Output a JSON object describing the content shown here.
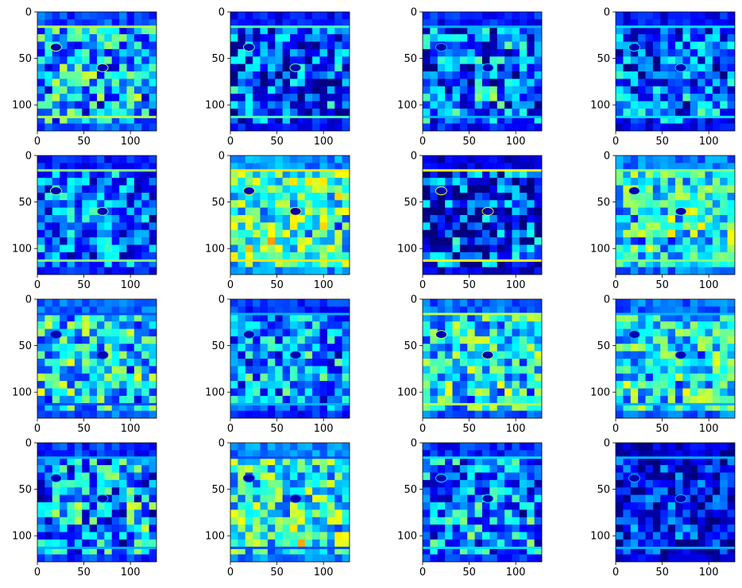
{
  "figure": {
    "layout": "4x4 grid of heatmap subplots",
    "colormap": "jet",
    "colormap_stops": [
      "#00007f",
      "#0000ff",
      "#007fff",
      "#00ffff",
      "#7fff7f",
      "#ffff00",
      "#ff7f00",
      "#ff0000",
      "#7f0000"
    ]
  },
  "chart_data": [
    {
      "type": "heatmap",
      "panel": 1,
      "image_size": 128,
      "xlim": [
        0,
        128
      ],
      "ylim": [
        128,
        0
      ],
      "x_ticks": [
        0,
        50,
        100
      ],
      "y_ticks": [
        0,
        50,
        100
      ],
      "x_tick_labels": [
        "0",
        "50",
        "100"
      ],
      "y_tick_labels": [
        "0",
        "50",
        "100"
      ],
      "mean_intensity": 0.32,
      "texture_contrast": 0.45,
      "band_top_row": 16,
      "band_bottom_row": 113,
      "band_intensity": 0.55,
      "blob_rows": [
        38,
        60
      ],
      "grid": false
    },
    {
      "type": "heatmap",
      "panel": 2,
      "image_size": 128,
      "xlim": [
        0,
        128
      ],
      "ylim": [
        128,
        0
      ],
      "x_ticks": [
        0,
        50,
        100
      ],
      "y_ticks": [
        0,
        50,
        100
      ],
      "x_tick_labels": [
        "0",
        "50",
        "100"
      ],
      "y_tick_labels": [
        "0",
        "50",
        "100"
      ],
      "mean_intensity": 0.2,
      "texture_contrast": 0.4,
      "band_top_row": 16,
      "band_bottom_row": 113,
      "band_intensity": 0.45,
      "blob_rows": [
        38,
        60
      ],
      "grid": false
    },
    {
      "type": "heatmap",
      "panel": 3,
      "image_size": 128,
      "xlim": [
        0,
        128
      ],
      "ylim": [
        128,
        0
      ],
      "x_ticks": [
        0,
        50,
        100
      ],
      "y_ticks": [
        0,
        50,
        100
      ],
      "x_tick_labels": [
        "0",
        "50",
        "100"
      ],
      "y_tick_labels": [
        "0",
        "50",
        "100"
      ],
      "mean_intensity": 0.24,
      "texture_contrast": 0.5,
      "band_top_row": 16,
      "band_bottom_row": 113,
      "band_intensity": 0.3,
      "blob_rows": [
        38,
        60
      ],
      "grid": false
    },
    {
      "type": "heatmap",
      "panel": 4,
      "image_size": 128,
      "xlim": [
        0,
        128
      ],
      "ylim": [
        128,
        0
      ],
      "x_ticks": [
        0,
        50,
        100
      ],
      "y_ticks": [
        0,
        50,
        100
      ],
      "x_tick_labels": [
        "0",
        "50",
        "100"
      ],
      "y_tick_labels": [
        "0",
        "50",
        "100"
      ],
      "mean_intensity": 0.22,
      "texture_contrast": 0.45,
      "band_top_row": 16,
      "band_bottom_row": 113,
      "band_intensity": 0.35,
      "blob_rows": [
        38,
        60
      ],
      "grid": false
    },
    {
      "type": "heatmap",
      "panel": 5,
      "image_size": 128,
      "xlim": [
        0,
        128
      ],
      "ylim": [
        128,
        0
      ],
      "x_ticks": [
        0,
        50,
        100
      ],
      "y_ticks": [
        0,
        50,
        100
      ],
      "x_tick_labels": [
        "0",
        "50",
        "100"
      ],
      "y_tick_labels": [
        "0",
        "50",
        "100"
      ],
      "mean_intensity": 0.24,
      "texture_contrast": 0.4,
      "band_top_row": 16,
      "band_bottom_row": 113,
      "band_intensity": 0.5,
      "blob_rows": [
        38,
        60
      ],
      "grid": false
    },
    {
      "type": "heatmap",
      "panel": 6,
      "image_size": 128,
      "xlim": [
        0,
        128
      ],
      "ylim": [
        128,
        0
      ],
      "x_ticks": [
        0,
        50,
        100
      ],
      "y_ticks": [
        0,
        50,
        100
      ],
      "x_tick_labels": [
        "0",
        "50",
        "100"
      ],
      "y_tick_labels": [
        "0",
        "50",
        "100"
      ],
      "mean_intensity": 0.44,
      "texture_contrast": 0.45,
      "band_top_row": 16,
      "band_bottom_row": 113,
      "band_intensity": 0.65,
      "blob_rows": [
        38,
        60
      ],
      "grid": false
    },
    {
      "type": "heatmap",
      "panel": 7,
      "image_size": 128,
      "xlim": [
        0,
        128
      ],
      "ylim": [
        128,
        0
      ],
      "x_ticks": [
        0,
        50,
        100
      ],
      "y_ticks": [
        0,
        50,
        100
      ],
      "x_tick_labels": [
        "0",
        "50",
        "100"
      ],
      "y_tick_labels": [
        "0",
        "50",
        "100"
      ],
      "mean_intensity": 0.14,
      "texture_contrast": 0.55,
      "band_top_row": 16,
      "band_bottom_row": 113,
      "band_intensity": 0.6,
      "blob_rows": [
        38,
        60
      ],
      "grid": false
    },
    {
      "type": "heatmap",
      "panel": 8,
      "image_size": 128,
      "xlim": [
        0,
        128
      ],
      "ylim": [
        128,
        0
      ],
      "x_ticks": [
        0,
        50,
        100
      ],
      "y_ticks": [
        0,
        50,
        100
      ],
      "x_tick_labels": [
        "0",
        "50",
        "100"
      ],
      "y_tick_labels": [
        "0",
        "50",
        "100"
      ],
      "mean_intensity": 0.4,
      "texture_contrast": 0.4,
      "band_top_row": 16,
      "band_bottom_row": 113,
      "band_intensity": 0.5,
      "blob_rows": [
        38,
        60
      ],
      "grid": false
    },
    {
      "type": "heatmap",
      "panel": 9,
      "image_size": 128,
      "xlim": [
        0,
        128
      ],
      "ylim": [
        128,
        0
      ],
      "x_ticks": [
        0,
        50,
        100
      ],
      "y_ticks": [
        0,
        50,
        100
      ],
      "x_tick_labels": [
        "0",
        "50",
        "100"
      ],
      "y_tick_labels": [
        "0",
        "50",
        "100"
      ],
      "mean_intensity": 0.36,
      "texture_contrast": 0.45,
      "band_top_row": 16,
      "band_bottom_row": 113,
      "band_intensity": 0.2,
      "blob_rows": [
        38,
        60
      ],
      "grid": false
    },
    {
      "type": "heatmap",
      "panel": 10,
      "image_size": 128,
      "xlim": [
        0,
        128
      ],
      "ylim": [
        128,
        0
      ],
      "x_ticks": [
        0,
        50,
        100
      ],
      "y_ticks": [
        0,
        50,
        100
      ],
      "x_tick_labels": [
        "0",
        "50",
        "100"
      ],
      "y_tick_labels": [
        "0",
        "50",
        "100"
      ],
      "mean_intensity": 0.27,
      "texture_contrast": 0.4,
      "band_top_row": 16,
      "band_bottom_row": 113,
      "band_intensity": 0.3,
      "blob_rows": [
        38,
        60
      ],
      "grid": false
    },
    {
      "type": "heatmap",
      "panel": 11,
      "image_size": 128,
      "xlim": [
        0,
        128
      ],
      "ylim": [
        128,
        0
      ],
      "x_ticks": [
        0,
        50,
        100
      ],
      "y_ticks": [
        0,
        50,
        100
      ],
      "x_tick_labels": [
        "0",
        "50",
        "100"
      ],
      "y_tick_labels": [
        "0",
        "50",
        "100"
      ],
      "mean_intensity": 0.37,
      "texture_contrast": 0.45,
      "band_top_row": 16,
      "band_bottom_row": 113,
      "band_intensity": 0.55,
      "blob_rows": [
        38,
        60
      ],
      "grid": false
    },
    {
      "type": "heatmap",
      "panel": 12,
      "image_size": 128,
      "xlim": [
        0,
        128
      ],
      "ylim": [
        128,
        0
      ],
      "x_ticks": [
        0,
        50,
        100
      ],
      "y_ticks": [
        0,
        50,
        100
      ],
      "x_tick_labels": [
        "0",
        "50",
        "100"
      ],
      "y_tick_labels": [
        "0",
        "50",
        "100"
      ],
      "mean_intensity": 0.38,
      "texture_contrast": 0.4,
      "band_top_row": 16,
      "band_bottom_row": 113,
      "band_intensity": 0.3,
      "blob_rows": [
        38,
        60
      ],
      "grid": false
    },
    {
      "type": "heatmap",
      "panel": 13,
      "image_size": 128,
      "xlim": [
        0,
        128
      ],
      "ylim": [
        128,
        0
      ],
      "x_ticks": [
        0,
        50,
        100
      ],
      "y_ticks": [
        0,
        50,
        100
      ],
      "x_tick_labels": [
        "0",
        "50",
        "100"
      ],
      "y_tick_labels": [
        "0",
        "50",
        "100"
      ],
      "mean_intensity": 0.28,
      "texture_contrast": 0.5,
      "band_top_row": 16,
      "band_bottom_row": 113,
      "band_intensity": 0.3,
      "blob_rows": [
        38,
        60
      ],
      "grid": false
    },
    {
      "type": "heatmap",
      "panel": 14,
      "image_size": 128,
      "xlim": [
        0,
        128
      ],
      "ylim": [
        128,
        0
      ],
      "x_ticks": [
        0,
        50,
        100
      ],
      "y_ticks": [
        0,
        50,
        100
      ],
      "x_tick_labels": [
        "0",
        "50",
        "100"
      ],
      "y_tick_labels": [
        "0",
        "50",
        "100"
      ],
      "mean_intensity": 0.41,
      "texture_contrast": 0.45,
      "band_top_row": 16,
      "band_bottom_row": 113,
      "band_intensity": 0.2,
      "blob_rows": [
        38,
        60
      ],
      "grid": false
    },
    {
      "type": "heatmap",
      "panel": 15,
      "image_size": 128,
      "xlim": [
        0,
        128
      ],
      "ylim": [
        128,
        0
      ],
      "x_ticks": [
        0,
        50,
        100
      ],
      "y_ticks": [
        0,
        50,
        100
      ],
      "x_tick_labels": [
        "0",
        "50",
        "100"
      ],
      "y_tick_labels": [
        "0",
        "50",
        "100"
      ],
      "mean_intensity": 0.26,
      "texture_contrast": 0.45,
      "band_top_row": 16,
      "band_bottom_row": 113,
      "band_intensity": 0.35,
      "blob_rows": [
        38,
        60
      ],
      "grid": false
    },
    {
      "type": "heatmap",
      "panel": 16,
      "image_size": 128,
      "xlim": [
        0,
        128
      ],
      "ylim": [
        128,
        0
      ],
      "x_ticks": [
        0,
        50,
        100
      ],
      "y_ticks": [
        0,
        50,
        100
      ],
      "x_tick_labels": [
        "0",
        "50",
        "100"
      ],
      "y_tick_labels": [
        "0",
        "50",
        "100"
      ],
      "mean_intensity": 0.13,
      "texture_contrast": 0.35,
      "band_top_row": 16,
      "band_bottom_row": 113,
      "band_intensity": 0.3,
      "blob_rows": [
        38,
        60
      ],
      "grid": false
    }
  ]
}
